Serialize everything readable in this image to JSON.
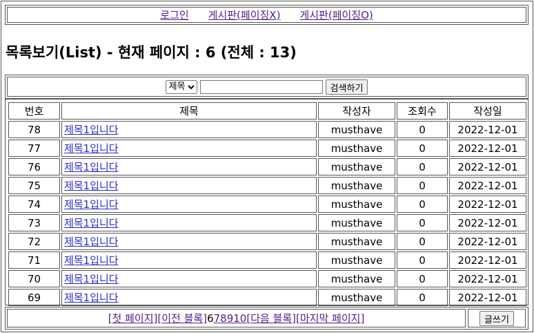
{
  "nav": {
    "links": [
      "로그인",
      "게시판(페이징X)",
      "게시판(페이징O)"
    ]
  },
  "heading": "목록보기(List) - 현재 페이지 : 6 (전체 : 13)",
  "search": {
    "field_selected": "제목",
    "query": "",
    "button": "검색하기"
  },
  "table": {
    "headers": [
      "번호",
      "제목",
      "작성자",
      "조회수",
      "작성일"
    ],
    "rows": [
      {
        "no": "78",
        "title": "제목1입니다",
        "author": "musthave",
        "views": "0",
        "date": "2022-12-01"
      },
      {
        "no": "77",
        "title": "제목1입니다",
        "author": "musthave",
        "views": "0",
        "date": "2022-12-01"
      },
      {
        "no": "76",
        "title": "제목1입니다",
        "author": "musthave",
        "views": "0",
        "date": "2022-12-01"
      },
      {
        "no": "75",
        "title": "제목1입니다",
        "author": "musthave",
        "views": "0",
        "date": "2022-12-01"
      },
      {
        "no": "74",
        "title": "제목1입니다",
        "author": "musthave",
        "views": "0",
        "date": "2022-12-01"
      },
      {
        "no": "73",
        "title": "제목1입니다",
        "author": "musthave",
        "views": "0",
        "date": "2022-12-01"
      },
      {
        "no": "72",
        "title": "제목1입니다",
        "author": "musthave",
        "views": "0",
        "date": "2022-12-01"
      },
      {
        "no": "71",
        "title": "제목1입니다",
        "author": "musthave",
        "views": "0",
        "date": "2022-12-01"
      },
      {
        "no": "70",
        "title": "제목1입니다",
        "author": "musthave",
        "views": "0",
        "date": "2022-12-01"
      },
      {
        "no": "69",
        "title": "제목1입니다",
        "author": "musthave",
        "views": "0",
        "date": "2022-12-01"
      }
    ]
  },
  "pager": {
    "first": "[첫 페이지]",
    "prev_block": "[이전 블록]",
    "current": "6",
    "pages": [
      "7",
      "8",
      "9",
      "10"
    ],
    "next_block": "[다음 블록]",
    "last": "[마지막 페이지]"
  },
  "write_button": "글쓰기"
}
